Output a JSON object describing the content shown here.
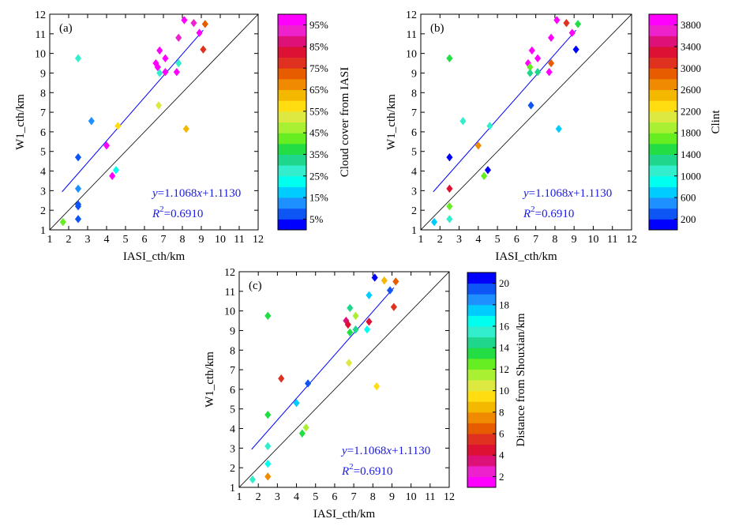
{
  "figure": {
    "fit_line_color": "#0000ff",
    "identity_line_color": "#000000",
    "equation_color": "#1a1ae6"
  },
  "chart_data": [
    {
      "type": "scatter",
      "panel_label": "(a)",
      "xlabel": "IASI_cth/km",
      "ylabel": "W1_cth/km",
      "xlim": [
        1,
        12
      ],
      "ylim": [
        1,
        12
      ],
      "xticks": [
        "1",
        "2",
        "3",
        "4",
        "5",
        "6",
        "7",
        "8",
        "9",
        "10",
        "11",
        "12"
      ],
      "yticks": [
        "1",
        "2",
        "3",
        "4",
        "5",
        "6",
        "7",
        "8",
        "9",
        "10",
        "11",
        "12"
      ],
      "equation": "y=1.1068x+1.1130",
      "r2": "R²=0.6910",
      "fit": {
        "slope": 1.1068,
        "intercept": 1.113,
        "x_range": [
          1.65,
          9.1
        ]
      },
      "identity_line": true,
      "colorbar": {
        "label": "Cloud cover from IASI",
        "range": [
          0,
          100
        ],
        "ticks": [
          {
            "v": 5,
            "t": "5%"
          },
          {
            "v": 15,
            "t": "15%"
          },
          {
            "v": 25,
            "t": "25%"
          },
          {
            "v": 35,
            "t": "35%"
          },
          {
            "v": 45,
            "t": "45%"
          },
          {
            "v": 55,
            "t": "55%"
          },
          {
            "v": 65,
            "t": "65%"
          },
          {
            "v": 75,
            "t": "75%"
          },
          {
            "v": 85,
            "t": "85%"
          },
          {
            "v": 95,
            "t": "95%"
          }
        ]
      },
      "points": [
        [
          1.7,
          1.4,
          40
        ],
        [
          2.5,
          1.55,
          8
        ],
        [
          2.5,
          2.2,
          5
        ],
        [
          2.5,
          2.3,
          8
        ],
        [
          2.5,
          3.1,
          12
        ],
        [
          2.5,
          4.7,
          5
        ],
        [
          2.5,
          9.75,
          25
        ],
        [
          3.2,
          6.55,
          12
        ],
        [
          4.0,
          5.3,
          95
        ],
        [
          4.3,
          3.75,
          95
        ],
        [
          4.5,
          4.05,
          22
        ],
        [
          4.6,
          6.3,
          55
        ],
        [
          6.6,
          9.5,
          95
        ],
        [
          6.7,
          9.3,
          95
        ],
        [
          6.8,
          10.15,
          95
        ],
        [
          6.8,
          9.0,
          28
        ],
        [
          6.75,
          7.35,
          50
        ],
        [
          7.1,
          9.75,
          95
        ],
        [
          7.1,
          9.05,
          95
        ],
        [
          7.7,
          9.05,
          95
        ],
        [
          7.8,
          10.8,
          92
        ],
        [
          7.8,
          9.5,
          28
        ],
        [
          8.1,
          11.7,
          95
        ],
        [
          8.2,
          6.15,
          62
        ],
        [
          8.6,
          11.55,
          92
        ],
        [
          8.9,
          11.05,
          95
        ],
        [
          9.1,
          10.2,
          78
        ],
        [
          9.2,
          11.5,
          72
        ]
      ]
    },
    {
      "type": "scatter",
      "panel_label": "(b)",
      "xlabel": "IASI_cth/km",
      "ylabel": "W1_cth/km",
      "xlim": [
        1,
        12
      ],
      "ylim": [
        1,
        12
      ],
      "xticks": [
        "1",
        "2",
        "3",
        "4",
        "5",
        "6",
        "7",
        "8",
        "9",
        "10",
        "11",
        "12"
      ],
      "yticks": [
        "1",
        "2",
        "3",
        "4",
        "5",
        "6",
        "7",
        "8",
        "9",
        "10",
        "11",
        "12"
      ],
      "equation": "y=1.1068x+1.1130",
      "r2": "R²=0.6910",
      "fit": {
        "slope": 1.1068,
        "intercept": 1.113,
        "x_range": [
          1.65,
          9.1
        ]
      },
      "identity_line": true,
      "colorbar": {
        "label": "Clint",
        "range": [
          0,
          4000
        ],
        "ticks": [
          {
            "v": 200,
            "t": "200"
          },
          {
            "v": 600,
            "t": "600"
          },
          {
            "v": 1000,
            "t": "1000"
          },
          {
            "v": 1400,
            "t": "1400"
          },
          {
            "v": 1800,
            "t": "1800"
          },
          {
            "v": 2200,
            "t": "2200"
          },
          {
            "v": 2600,
            "t": "2600"
          },
          {
            "v": 3000,
            "t": "3000"
          },
          {
            "v": 3400,
            "t": "3400"
          },
          {
            "v": 3800,
            "t": "3800"
          }
        ]
      },
      "points": [
        [
          1.7,
          1.4,
          700
        ],
        [
          2.5,
          1.55,
          1000
        ],
        [
          2.5,
          2.2,
          1600
        ],
        [
          2.5,
          3.1,
          3200
        ],
        [
          2.5,
          4.7,
          50
        ],
        [
          2.5,
          9.75,
          1400
        ],
        [
          3.2,
          6.55,
          1000
        ],
        [
          4.0,
          5.3,
          2600
        ],
        [
          4.3,
          3.75,
          1700
        ],
        [
          4.5,
          4.05,
          100
        ],
        [
          4.6,
          6.3,
          1000
        ],
        [
          6.6,
          9.5,
          3800
        ],
        [
          6.7,
          9.3,
          1600
        ],
        [
          6.7,
          9.0,
          1300
        ],
        [
          6.8,
          10.15,
          3800
        ],
        [
          6.75,
          7.35,
          200
        ],
        [
          7.1,
          9.75,
          3800
        ],
        [
          7.1,
          9.05,
          1300
        ],
        [
          7.7,
          9.05,
          3800
        ],
        [
          7.8,
          10.8,
          3800
        ],
        [
          7.8,
          9.5,
          2800
        ],
        [
          8.1,
          11.7,
          3800
        ],
        [
          8.2,
          6.15,
          700
        ],
        [
          8.6,
          11.55,
          3000
        ],
        [
          8.9,
          11.05,
          3800
        ],
        [
          9.1,
          10.2,
          100
        ],
        [
          9.2,
          11.5,
          1400
        ]
      ]
    },
    {
      "type": "scatter",
      "panel_label": "(c)",
      "xlabel": "IASI_cth/km",
      "ylabel": "W1_cth/km",
      "xlim": [
        1,
        12
      ],
      "ylim": [
        1,
        12
      ],
      "xticks": [
        "1",
        "2",
        "3",
        "4",
        "5",
        "6",
        "7",
        "8",
        "9",
        "10",
        "11",
        "12"
      ],
      "yticks": [
        "1",
        "2",
        "3",
        "4",
        "5",
        "6",
        "7",
        "8",
        "9",
        "10",
        "11",
        "12"
      ],
      "equation": "y=1.1068x+1.1130",
      "r2": "R²=0.6910",
      "fit": {
        "slope": 1.1068,
        "intercept": 1.113,
        "x_range": [
          1.65,
          9.1
        ]
      },
      "identity_line": true,
      "colorbar": {
        "label": "Distance from Shouxian/km",
        "range": [
          1,
          21
        ],
        "ticks": [
          {
            "v": 2,
            "t": "2"
          },
          {
            "v": 4,
            "t": "4"
          },
          {
            "v": 6,
            "t": "6"
          },
          {
            "v": 8,
            "t": "8"
          },
          {
            "v": 10,
            "t": "10"
          },
          {
            "v": 12,
            "t": "12"
          },
          {
            "v": 14,
            "t": "14"
          },
          {
            "v": 16,
            "t": "16"
          },
          {
            "v": 18,
            "t": "18"
          },
          {
            "v": 20,
            "t": "20"
          }
        ]
      },
      "points": [
        [
          1.7,
          1.4,
          15
        ],
        [
          2.5,
          1.55,
          7.5
        ],
        [
          2.5,
          2.2,
          16.5
        ],
        [
          2.5,
          3.1,
          15
        ],
        [
          2.5,
          4.7,
          13.5
        ],
        [
          2.5,
          9.75,
          13
        ],
        [
          3.2,
          6.55,
          5
        ],
        [
          4.0,
          5.3,
          17.5
        ],
        [
          4.3,
          3.75,
          13
        ],
        [
          4.5,
          4.05,
          11
        ],
        [
          4.6,
          6.3,
          19
        ],
        [
          6.6,
          9.5,
          3
        ],
        [
          6.7,
          9.3,
          4
        ],
        [
          6.8,
          10.15,
          14
        ],
        [
          6.8,
          8.9,
          13
        ],
        [
          6.75,
          7.35,
          10
        ],
        [
          7.1,
          9.75,
          11
        ],
        [
          7.1,
          9.05,
          14.5
        ],
        [
          7.7,
          9.05,
          16.5
        ],
        [
          7.8,
          10.8,
          17
        ],
        [
          7.8,
          9.45,
          4
        ],
        [
          8.1,
          11.7,
          20
        ],
        [
          8.2,
          6.15,
          9
        ],
        [
          8.6,
          11.55,
          8.5
        ],
        [
          8.9,
          11.05,
          19
        ],
        [
          9.1,
          10.2,
          5
        ],
        [
          9.2,
          11.5,
          6.5
        ]
      ]
    }
  ]
}
